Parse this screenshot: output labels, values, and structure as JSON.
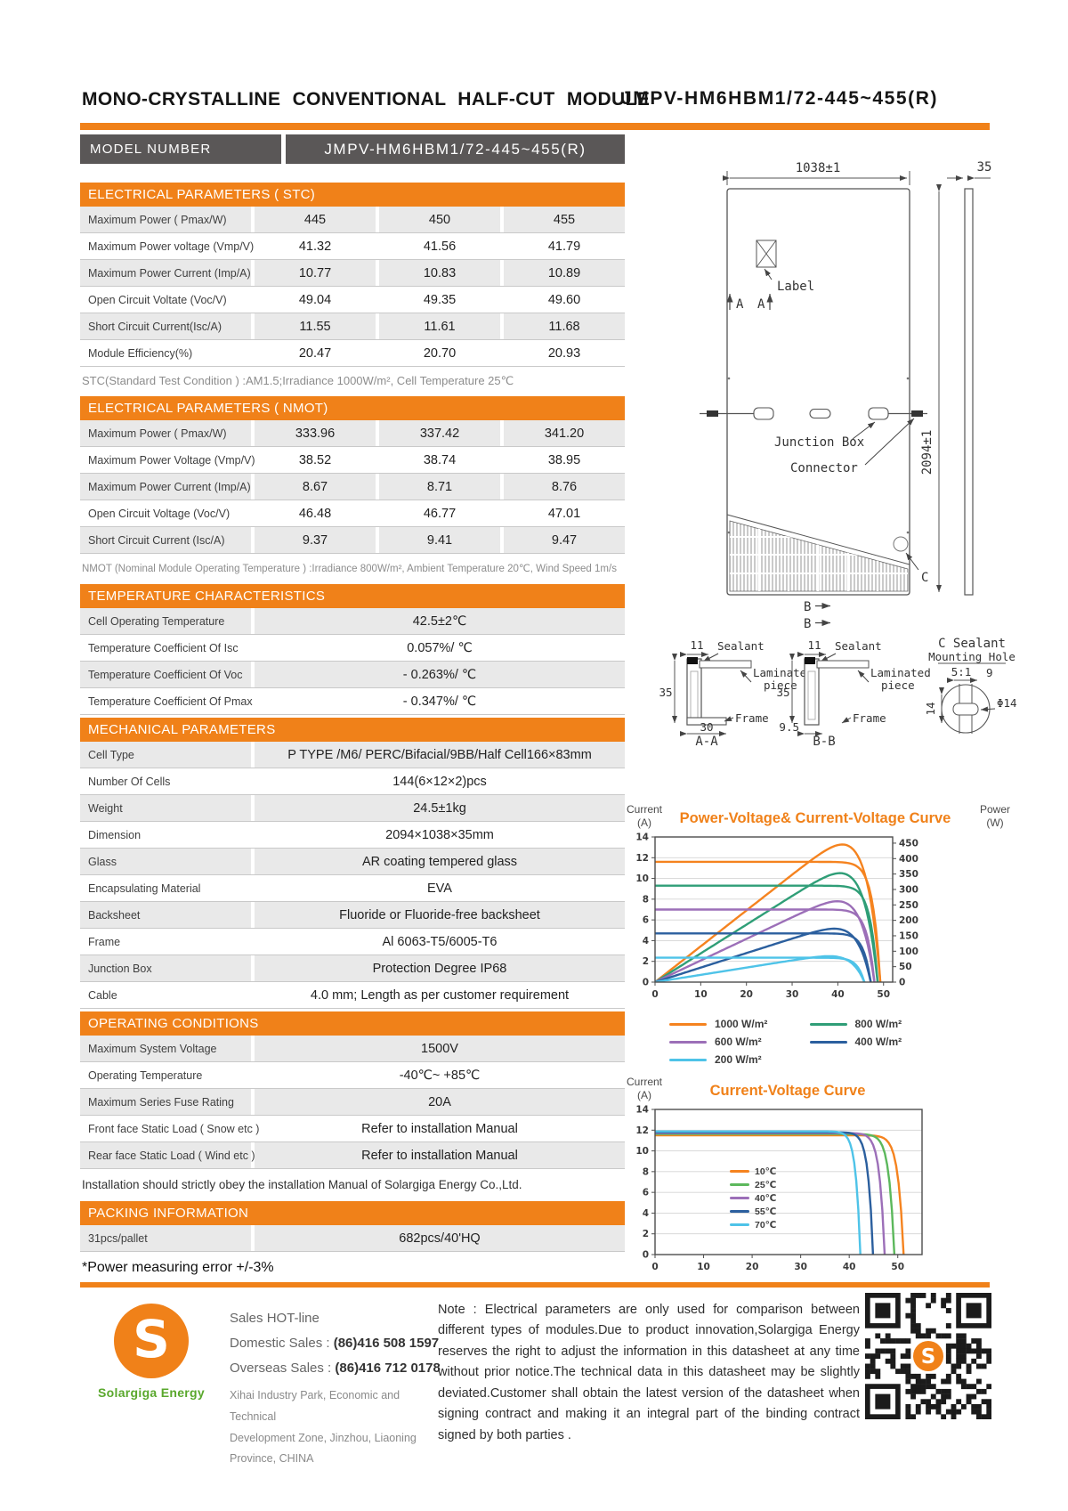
{
  "page": {
    "title_left": "MONO-CRYSTALLINE  CONVENTIONAL  HALF-CUT  MODULE",
    "title_right": "JMPV-HM6HBM1/72-445~455(R)"
  },
  "colors": {
    "accent": "#F08119",
    "header_gray": "#5A5757",
    "logo_green": "#5aa82d"
  },
  "model": {
    "label": "MODEL   NUMBER",
    "value": "JMPV-HM6HBM1/72-445~455(R)"
  },
  "stc": {
    "header": "ELECTRICAL PARAMETERS ( STC)",
    "rows": [
      {
        "label": "Maximum Power ( Pmax/W)",
        "values": [
          "445",
          "450",
          "455"
        ]
      },
      {
        "label": "Maximum Power voltage (Vmp/V)",
        "values": [
          "41.32",
          "41.56",
          "41.79"
        ]
      },
      {
        "label": "Maximum Power Current (Imp/A)",
        "values": [
          "10.77",
          "10.83",
          "10.89"
        ]
      },
      {
        "label": "Open Circuit Voltate (Voc/V)",
        "values": [
          "49.04",
          "49.35",
          "49.60"
        ]
      },
      {
        "label": "Short Circuit Current(Isc/A)",
        "values": [
          "11.55",
          "11.61",
          "11.68"
        ]
      },
      {
        "label": "Module Efficiency(%)",
        "values": [
          "20.47",
          "20.70",
          "20.93"
        ]
      }
    ],
    "footnote": "STC(Standard Test Condition ) :AM1.5;Irradiance 1000W/m²,  Cell Temperature 25℃"
  },
  "nmot": {
    "header": "ELECTRICAL PARAMETERS ( NMOT)",
    "rows": [
      {
        "label": "Maximum Power ( Pmax/W)",
        "values": [
          "333.96",
          "337.42",
          "341.20"
        ]
      },
      {
        "label": "Maximum Power Voltage (Vmp/V)",
        "values": [
          "38.52",
          "38.74",
          "38.95"
        ]
      },
      {
        "label": "Maximum Power Current (Imp/A)",
        "values": [
          "8.67",
          "8.71",
          "8.76"
        ]
      },
      {
        "label": "Open Circuit Voltage (Voc/V)",
        "values": [
          "46.48",
          "46.77",
          "47.01"
        ]
      },
      {
        "label": "Short Circuit Current (Isc/A)",
        "values": [
          "9.37",
          "9.41",
          "9.47"
        ]
      }
    ],
    "footnote": "NMOT  (Nominal Module Operating Temperature ) :Irradiance 800W/m²,  Ambient Temperature  20℃,  Wind Speed 1m/s"
  },
  "temperature": {
    "header": "TEMPERATURE CHARACTERISTICS",
    "rows": [
      {
        "label": "Cell Operating Temperature",
        "value": "42.5±2℃"
      },
      {
        "label": "Temperature Coefficient Of Isc",
        "value": "0.057%/ ℃"
      },
      {
        "label": "Temperature Coefficient Of Voc",
        "value": "- 0.263%/ ℃"
      },
      {
        "label": "Temperature Coefficient Of Pmax",
        "value": "- 0.347%/ ℃"
      }
    ]
  },
  "mechanical": {
    "header": "MECHANICAL PARAMETERS",
    "rows": [
      {
        "label": "Cell Type",
        "value": "P TYPE /M6/ PERC/Bifacial/9BB/Half Cell166×83mm"
      },
      {
        "label": "Number Of Cells",
        "value": "144(6×12×2)pcs"
      },
      {
        "label": "Weight",
        "value": "24.5±1kg"
      },
      {
        "label": "Dimension",
        "value": "2094×1038×35mm"
      },
      {
        "label": "Glass",
        "value": "AR coating tempered glass"
      },
      {
        "label": "Encapsulating Material",
        "value": "EVA"
      },
      {
        "label": "Backsheet",
        "value": "Fluoride or Fluoride-free backsheet"
      },
      {
        "label": "Frame",
        "value": "Al 6063-T5/6005-T6"
      },
      {
        "label": "Junction Box",
        "value": "Protection Degree IP68"
      },
      {
        "label": "Cable",
        "value": "4.0 mm;  Length as per customer requirement"
      }
    ]
  },
  "operating": {
    "header": "OPERATING CONDITIONS",
    "rows": [
      {
        "label": "Maximum System Voltage",
        "value": "1500V"
      },
      {
        "label": "Operating Temperature",
        "value": "-40℃~ +85℃"
      },
      {
        "label": "Maximum Series Fuse Rating",
        "value": "20A"
      },
      {
        "label": "Front face Static Load ( Snow etc )",
        "value": "Refer to installation Manual"
      },
      {
        "label": "Rear face Static Load ( Wind etc )",
        "value": "Refer to installation Manual"
      }
    ],
    "footnote": "Installation should strictly obey the installation Manual of Solargiga  Energy Co.,Ltd."
  },
  "packing": {
    "header": "PACKING INFORMATION",
    "rows": [
      {
        "label": "31pcs/pallet",
        "value": "682pcs/40'HQ"
      }
    ]
  },
  "power_note": "*Power measuring error  +/-3%",
  "drawing": {
    "dim_width": "1038±1",
    "dim_thickness": "35",
    "dim_height": "2094±1",
    "label_box": "Label",
    "section_a1": "A",
    "section_a2": "A",
    "junction_box": "Junction Box",
    "connector": "Connector",
    "hole_c": "C",
    "section_b1": "B",
    "section_b2": "B",
    "aa": {
      "dim_top": "11",
      "sealant": "Sealant",
      "laminated1": "Laminated",
      "laminated2": "piece",
      "dim_left": "35",
      "dim_bottom": "30",
      "frame": "Frame",
      "caption": "A-A"
    },
    "bb": {
      "dim_top": "11",
      "sealant": "Sealant",
      "laminated1": "Laminated",
      "laminated2": "piece",
      "dim_left": "35",
      "dim_bottom": "9.5",
      "frame": "Frame",
      "caption": "B-B"
    },
    "cc": {
      "title1": "C Sealant",
      "title2": "Mounting Hole",
      "scale": "5:1",
      "dim_top": "9",
      "dim_dia": "Φ14",
      "dim_left": "14"
    }
  },
  "chart_data": [
    {
      "id": "chart-pv-iv",
      "type": "line",
      "title": "Power-Voltage& Current-Voltage Curve",
      "ylabel_lines": [
        "Current",
        "(A)"
      ],
      "y2label_lines": [
        "Power",
        "(W)"
      ],
      "xlabel": "",
      "xlim": [
        0,
        52
      ],
      "xticks": [
        0,
        10,
        20,
        30,
        40,
        50
      ],
      "ylim": [
        0,
        14
      ],
      "ytick_step": 2,
      "y2lim": [
        0,
        470
      ],
      "y2ticks": [
        0,
        50,
        100,
        150,
        200,
        250,
        300,
        350,
        400,
        450
      ],
      "grid": true,
      "knee": 30,
      "curves": "iv+pv",
      "legend_position": "below",
      "series": [
        {
          "name": "1000 W/m²",
          "color": "#F5831F",
          "isc": 11.6,
          "voc": 49.3,
          "pmax": 445
        },
        {
          "name": "800 W/m²",
          "color": "#2F9E77",
          "isc": 9.3,
          "voc": 48.7,
          "pmax": 355
        },
        {
          "name": "600 W/m²",
          "color": "#9C6FB8",
          "isc": 7.0,
          "voc": 48.0,
          "pmax": 265
        },
        {
          "name": "400 W/m²",
          "color": "#2B5F9E",
          "isc": 4.7,
          "voc": 47.2,
          "pmax": 175
        },
        {
          "name": "200 W/m²",
          "color": "#4EC3E8",
          "isc": 2.35,
          "voc": 45.8,
          "pmax": 82
        }
      ]
    },
    {
      "id": "chart-iv-temp",
      "type": "line",
      "title": "Current-Voltage Curve",
      "ylabel_lines": [
        "Current",
        "(A)"
      ],
      "xlabel": "",
      "xlim": [
        0,
        55
      ],
      "xticks": [
        0,
        10,
        20,
        30,
        40,
        50
      ],
      "ylim": [
        0,
        14
      ],
      "ytick_step": 2,
      "grid": true,
      "knee": 45,
      "curves": "iv",
      "legend_position": "inside-left",
      "series": [
        {
          "name": "10℃",
          "color": "#F5831F",
          "isc": 11.5,
          "voc": 51.2
        },
        {
          "name": "25℃",
          "color": "#5CB85C",
          "isc": 11.62,
          "voc": 49.3
        },
        {
          "name": "40℃",
          "color": "#9C6FB8",
          "isc": 11.72,
          "voc": 47.3
        },
        {
          "name": "55℃",
          "color": "#2B5F9E",
          "isc": 11.8,
          "voc": 44.9
        },
        {
          "name": "70℃",
          "color": "#4EC3E8",
          "isc": 11.88,
          "voc": 42.3
        }
      ]
    }
  ],
  "footer": {
    "sales_title": "Sales HOT-line",
    "domestic_label": "Domestic Sales : ",
    "domestic_number": "(86)416 508 1597",
    "overseas_label": "Overseas Sales : ",
    "overseas_number": "(86)416 712 0178",
    "address_lines": [
      "Xihai Industry Park, Economic and Technical",
      "Development  Zone, Jinzhou, Liaoning",
      "Province, CHINA"
    ],
    "note": "Note :  Electrical parameters are only used for comparison between different types of modules.Due to product innovation,Solargiga Energy reserves the right to adjust the information in this datasheet at any time without prior notice.The technical data in this datasheet may be slightly deviated.Customer shall obtain the latest version of the datasheet when signing contract and making it an integral part of the binding contract signed by both parties .",
    "logo_text": "Solargiga Energy"
  }
}
